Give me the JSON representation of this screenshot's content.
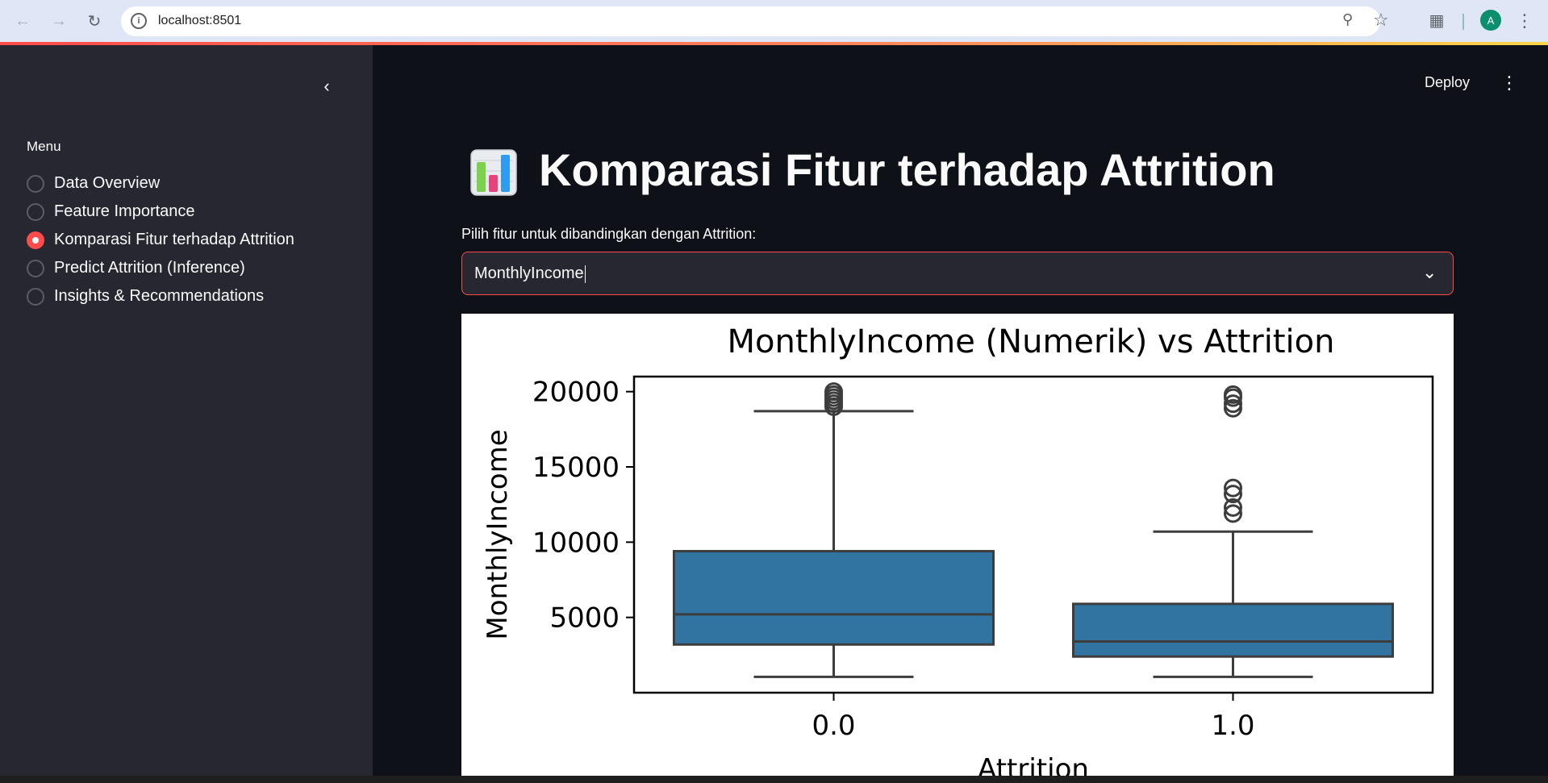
{
  "browser": {
    "url": "localhost:8501",
    "profile_initial": "A",
    "icons": {
      "back": "arrow-left-icon",
      "forward": "arrow-right-icon",
      "reload": "reload-icon",
      "site_info": "info-icon",
      "zoom": "zoom-icon",
      "bookmark": "star-icon",
      "extensions": "puzzle-icon",
      "menu": "kebab-menu-icon"
    }
  },
  "sidebar": {
    "menu_label": "Menu",
    "items": [
      {
        "label": "Data Overview",
        "selected": false
      },
      {
        "label": "Feature Importance",
        "selected": false
      },
      {
        "label": "Komparasi Fitur terhadap Attrition",
        "selected": true
      },
      {
        "label": "Predict Attrition (Inference)",
        "selected": false
      },
      {
        "label": "Insights & Recommendations",
        "selected": false
      }
    ],
    "accent_color": "#ff4b4b"
  },
  "header": {
    "deploy_label": "Deploy"
  },
  "main": {
    "title_icon": "bar-chart-emoji-icon",
    "title": "Komparasi Fitur terhadap Attrition",
    "select_label": "Pilih fitur untuk dibandingkan dengan Attrition:",
    "select_value": "MonthlyIncome"
  },
  "chart_data": {
    "type": "box",
    "title": "MonthlyIncome (Numerik) vs Attrition",
    "xlabel": "Attrition",
    "ylabel": "MonthlyIncome",
    "categories": [
      "0.0",
      "1.0"
    ],
    "yticks": [
      5000,
      10000,
      15000,
      20000
    ],
    "ylim": [
      0,
      21000
    ],
    "box_color": "#3274a1",
    "boxes": [
      {
        "category": "0.0",
        "whisker_low": 1050,
        "q1": 3200,
        "median": 5200,
        "q3": 9400,
        "whisker_high": 18700,
        "outliers": [
          19000,
          19200,
          19400,
          19600,
          19800,
          20000
        ]
      },
      {
        "category": "1.0",
        "whisker_low": 1050,
        "q1": 2400,
        "median": 3400,
        "q3": 5900,
        "whisker_high": 10700,
        "outliers": [
          11900,
          12300,
          13200,
          13600,
          18900,
          19200,
          19600,
          19800
        ]
      }
    ]
  }
}
